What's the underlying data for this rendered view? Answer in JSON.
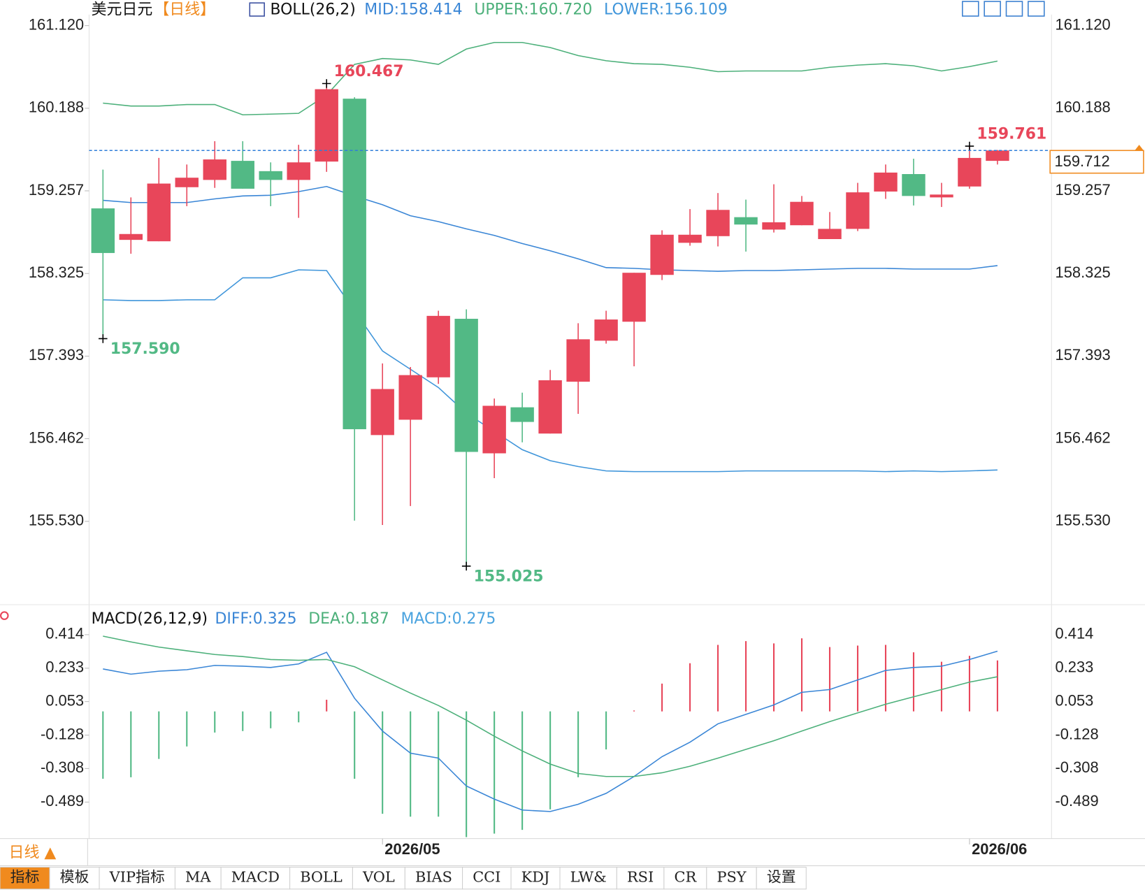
{
  "chart_data": [
    {
      "type": "candlestick",
      "title": "美元日元",
      "period": "【日线】",
      "indicator": "BOLL(26,2)",
      "categories": [
        null,
        null,
        null,
        null,
        null,
        null,
        null,
        null,
        null,
        null,
        "2026/05",
        null,
        null,
        null,
        null,
        null,
        null,
        null,
        null,
        null,
        null,
        null,
        null,
        null,
        null,
        null,
        null,
        null,
        null,
        null,
        null,
        "2026/06",
        null
      ],
      "open": [
        159.059,
        158.704,
        158.688,
        159.298,
        159.38,
        159.595,
        159.479,
        159.38,
        159.587,
        160.296,
        156.503,
        156.676,
        157.154,
        157.814,
        156.297,
        156.816,
        156.52,
        157.105,
        157.567,
        157.781,
        158.309,
        158.671,
        158.746,
        158.96,
        158.82,
        158.869,
        158.713,
        158.828,
        159.249,
        159.446,
        159.183,
        159.306,
        159.595
      ],
      "high": [
        159.496,
        159.183,
        159.628,
        159.554,
        159.817,
        159.817,
        159.578,
        159.776,
        160.467,
        160.312,
        157.311,
        157.27,
        157.905,
        157.921,
        156.915,
        156.981,
        157.237,
        157.764,
        157.905,
        158.333,
        158.812,
        159.051,
        159.232,
        159.158,
        159.331,
        159.199,
        159.018,
        159.347,
        159.554,
        159.619,
        159.347,
        159.761,
        159.718
      ],
      "low": [
        157.59,
        158.548,
        158.688,
        159.084,
        159.29,
        159.281,
        159.084,
        158.952,
        159.471,
        155.538,
        155.489,
        155.703,
        157.08,
        155.025,
        156.017,
        156.421,
        156.52,
        156.742,
        157.534,
        157.278,
        158.251,
        158.638,
        158.63,
        158.572,
        158.787,
        158.869,
        158.713,
        158.803,
        159.166,
        159.092,
        159.075,
        159.281,
        159.554
      ],
      "close": [
        158.556,
        158.77,
        159.339,
        159.405,
        159.611,
        159.281,
        159.38,
        159.578,
        160.403,
        156.569,
        157.022,
        157.179,
        157.847,
        156.313,
        156.833,
        156.651,
        157.121,
        157.583,
        157.806,
        158.333,
        158.762,
        158.762,
        159.042,
        158.877,
        158.902,
        159.133,
        158.828,
        159.24,
        159.463,
        159.199,
        159.215,
        159.628,
        159.712
      ],
      "up_color": "#e8465a",
      "down_color": "#52b985",
      "series": [
        {
          "name": "MID:158.414",
          "color": "#3a86d6",
          "values": [
            159.15,
            159.125,
            159.125,
            159.125,
            159.166,
            159.199,
            159.207,
            159.248,
            159.306,
            159.199,
            159.1,
            158.976,
            158.91,
            158.828,
            158.754,
            158.663,
            158.581,
            158.49,
            158.391,
            158.383,
            158.366,
            158.358,
            158.35,
            158.358,
            158.358,
            158.366,
            158.375,
            158.383,
            158.383,
            158.375,
            158.375,
            158.375,
            158.414
          ]
        },
        {
          "name": "UPPER:160.720",
          "color": "#4cb07a",
          "values": [
            160.246,
            160.213,
            160.213,
            160.23,
            160.23,
            160.114,
            160.122,
            160.131,
            160.337,
            160.683,
            160.749,
            160.733,
            160.683,
            160.856,
            160.93,
            160.93,
            160.873,
            160.782,
            160.724,
            160.691,
            160.683,
            160.65,
            160.601,
            160.609,
            160.609,
            160.609,
            160.65,
            160.675,
            160.691,
            160.667,
            160.609,
            160.658,
            160.72
          ]
        },
        {
          "name": "LOWER:156.109",
          "color": "#3f95da",
          "values": [
            158.028,
            158.02,
            158.02,
            158.028,
            158.028,
            158.276,
            158.276,
            158.366,
            158.358,
            157.905,
            157.451,
            157.245,
            157.039,
            156.75,
            156.544,
            156.338,
            156.214,
            156.148,
            156.099,
            156.091,
            156.091,
            156.091,
            156.091,
            156.099,
            156.099,
            156.099,
            156.099,
            156.099,
            156.091,
            156.099,
            156.091,
            156.099,
            156.109
          ]
        }
      ],
      "annotations": [
        {
          "value": 160.467,
          "label": "160.467"
        },
        {
          "value": 157.59,
          "label": "157.590"
        },
        {
          "value": 155.025,
          "label": "155.025"
        },
        {
          "value": 159.761,
          "label": "159.761"
        }
      ],
      "current_price": {
        "value": 159.712,
        "label": "159.712"
      },
      "ylim": [
        154.607,
        161.244
      ],
      "yticks": [
        {
          "value": 161.12,
          "label": "161.120"
        },
        160.188,
        159.257,
        158.325,
        157.393,
        156.462,
        {
          "value": 155.53,
          "label": "155.530"
        }
      ]
    },
    {
      "type": "macd",
      "title": "MACD(26,12,9)",
      "up_color": "#e8465a",
      "down_color": "#52b985",
      "series": [
        {
          "name": "DIFF:0.325",
          "color": "#3a86d6",
          "values": [
            0.229,
            0.201,
            0.217,
            0.225,
            0.248,
            0.244,
            0.237,
            0.256,
            0.319,
            0.071,
            -0.106,
            -0.225,
            -0.252,
            -0.402,
            -0.473,
            -0.532,
            -0.54,
            -0.501,
            -0.442,
            -0.351,
            -0.244,
            -0.166,
            -0.067,
            -0.016,
            0.035,
            0.103,
            0.118,
            0.17,
            0.221,
            0.237,
            0.244,
            0.28,
            0.325
          ]
        },
        {
          "name": "DEA:0.187",
          "color": "#4cb07a",
          "values": [
            0.406,
            0.375,
            0.347,
            0.327,
            0.307,
            0.296,
            0.28,
            0.276,
            0.28,
            0.241,
            0.17,
            0.099,
            0.032,
            -0.047,
            -0.134,
            -0.213,
            -0.284,
            -0.335,
            -0.351,
            -0.351,
            -0.331,
            -0.296,
            -0.252,
            -0.205,
            -0.158,
            -0.106,
            -0.055,
            -0.008,
            0.039,
            0.079,
            0.118,
            0.158,
            0.187
          ]
        },
        {
          "name": "MACD:0.275",
          "color": "#4aa3df",
          "type": "bar",
          "values": [
            -0.363,
            -0.355,
            -0.256,
            -0.189,
            -0.114,
            -0.106,
            -0.091,
            -0.059,
            0.063,
            -0.363,
            -0.552,
            -0.568,
            -0.568,
            -0.678,
            -0.659,
            -0.639,
            -0.528,
            -0.355,
            -0.205,
            0.005,
            0.15,
            0.26,
            0.359,
            0.379,
            0.367,
            0.394,
            0.347,
            0.355,
            0.359,
            0.319,
            0.268,
            0.3,
            0.275
          ]
        }
      ],
      "ylim": [
        -0.698,
        0.564
      ],
      "yticks": [
        0.414,
        0.233,
        0.053,
        -0.128,
        -0.308,
        -0.489
      ]
    }
  ],
  "toolbar": {
    "period": "日线 ▲",
    "tabs": [
      "指标",
      "模板",
      "VIP指标",
      "MA",
      "MACD",
      "BOLL",
      "VOL",
      "BIAS",
      "CCI",
      "KDJ",
      "LW&",
      "RSI",
      "CR",
      "PSY",
      "设置"
    ]
  }
}
